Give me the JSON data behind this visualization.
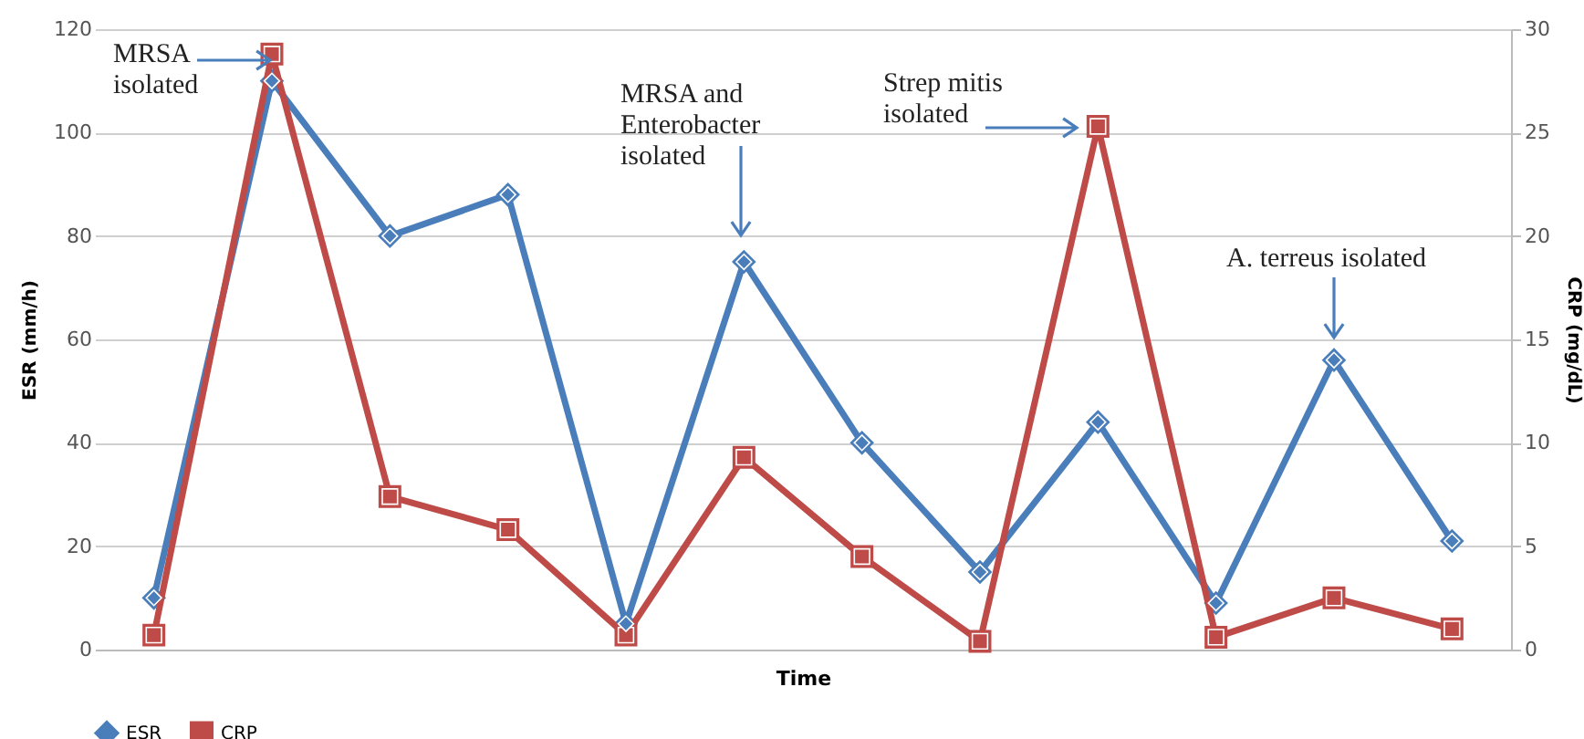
{
  "chart_data": {
    "type": "line",
    "xlabel": "Time",
    "ylabel": "ESR (mm/h)",
    "y2label": "CRP (mg/dL)",
    "categories": [
      null,
      null,
      null,
      null,
      null,
      null,
      null,
      null,
      null,
      null,
      null,
      null
    ],
    "series": [
      {
        "name": "ESR",
        "color": "#4a7ebb",
        "marker": "diamond",
        "values": [
          10,
          110,
          80,
          88,
          5,
          75,
          40,
          15,
          44,
          9,
          56,
          21
        ]
      },
      {
        "name": "CRP",
        "color": "#be4b48",
        "marker": "square",
        "axis": "y2",
        "values": [
          0.7,
          28.8,
          7.4,
          5.8,
          0.7,
          9.3,
          4.5,
          0.4,
          25.3,
          0.6,
          2.5,
          1.0
        ]
      }
    ],
    "ylim": [
      0,
      120
    ],
    "yticks": [
      0,
      20,
      40,
      60,
      80,
      100,
      120
    ],
    "y2lim": [
      0,
      30
    ],
    "y2ticks": [
      0,
      5,
      10,
      15,
      20,
      25,
      30
    ],
    "grid": "y",
    "legend": "bottom",
    "tick_labels": "y",
    "annotations": [
      "MRSA isolated",
      "MRSA and Enterobacter isolated",
      "Strep mitis isolated",
      "A. terreus isolated"
    ]
  }
}
